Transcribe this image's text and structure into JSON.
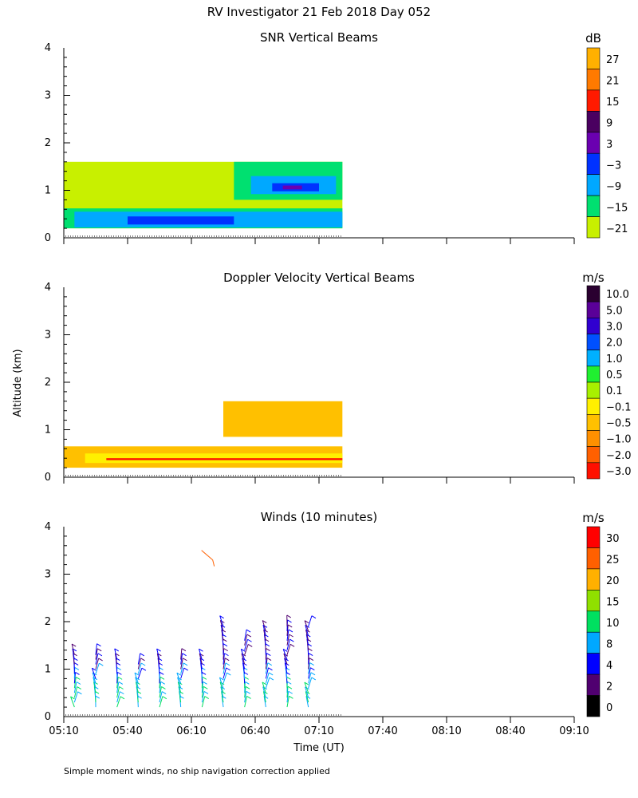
{
  "page_title": "RV Investigator  21 Feb 2018 Day 052",
  "footnote": "Simple moment winds, no ship navigation correction applied",
  "y_axis_label": "Altitude (km)",
  "x_axis_label": "Time (UT)",
  "time_ticks": [
    "05:10",
    "05:40",
    "06:10",
    "06:40",
    "07:10",
    "07:40",
    "08:10",
    "08:40",
    "09:10"
  ],
  "altitude_ticks": [
    "0",
    "1",
    "2",
    "3",
    "4"
  ],
  "chart_data": [
    {
      "type": "heatmap",
      "title": "SNR Vertical Beams",
      "ylabel": "Altitude (km)",
      "ylim": [
        0,
        4
      ],
      "x_range": [
        "05:10",
        "09:10"
      ],
      "data_extent": {
        "time": [
          "05:10",
          "07:21"
        ],
        "altitude_km": [
          0.2,
          1.6
        ]
      },
      "colorbar": {
        "unit": "dB",
        "labels": [
          "27",
          "21",
          "15",
          "9",
          "3",
          "−3",
          "−9",
          "−15",
          "−21"
        ],
        "colors": [
          "#ffb000",
          "#ff7a00",
          "#ff1a00",
          "#4a0060",
          "#6a00b0",
          "#0032ff",
          "#00a8ff",
          "#00e070",
          "#c8f000"
        ]
      },
      "layers": [
        {
          "level_db": -21,
          "color": "#c8f000",
          "bands": [
            {
              "t0": "05:10",
              "t1": "07:21",
              "z0": 0.2,
              "z1": 1.6
            }
          ]
        },
        {
          "level_db": -15,
          "color": "#00e070",
          "bands": [
            {
              "t0": "05:10",
              "t1": "07:21",
              "z0": 0.2,
              "z1": 0.62
            },
            {
              "t0": "06:30",
              "t1": "07:21",
              "z0": 0.8,
              "z1": 1.6
            }
          ]
        },
        {
          "level_db": -9,
          "color": "#00a8ff",
          "bands": [
            {
              "t0": "05:15",
              "t1": "07:21",
              "z0": 0.22,
              "z1": 0.55
            },
            {
              "t0": "06:38",
              "t1": "07:18",
              "z0": 0.92,
              "z1": 1.3
            }
          ]
        },
        {
          "level_db": -3,
          "color": "#0032ff",
          "bands": [
            {
              "t0": "05:40",
              "t1": "06:30",
              "z0": 0.28,
              "z1": 0.45
            },
            {
              "t0": "06:48",
              "t1": "07:10",
              "z0": 0.98,
              "z1": 1.15
            }
          ]
        },
        {
          "level_db": 3,
          "color": "#6a00b0",
          "bands": [
            {
              "t0": "06:53",
              "t1": "07:02",
              "z0": 1.02,
              "z1": 1.1
            }
          ]
        }
      ]
    },
    {
      "type": "heatmap",
      "title": "Doppler Velocity Vertical Beams",
      "ylabel": "Altitude (km)",
      "ylim": [
        0,
        4
      ],
      "x_range": [
        "05:10",
        "09:10"
      ],
      "data_extent": {
        "time": [
          "05:10",
          "07:21"
        ],
        "altitude_km": [
          0.2,
          1.6
        ]
      },
      "colorbar": {
        "unit": "m/s",
        "labels": [
          "10.0",
          "5.0",
          "3.0",
          "2.0",
          "1.0",
          "0.5",
          "0.1",
          "−0.1",
          "−0.5",
          "−1.0",
          "−2.0",
          "−3.0"
        ],
        "colors": [
          "#2a0030",
          "#5a0098",
          "#3000d0",
          "#0050ff",
          "#00b0ff",
          "#20f030",
          "#a8f000",
          "#fff000",
          "#ffc000",
          "#ff9000",
          "#ff6000",
          "#ff1000"
        ]
      },
      "layers": [
        {
          "level_ms": -0.5,
          "color": "#ffc000",
          "bands": [
            {
              "t0": "05:10",
              "t1": "07:21",
              "z0": 0.2,
              "z1": 0.65
            },
            {
              "t0": "06:25",
              "t1": "07:21",
              "z0": 0.85,
              "z1": 1.6
            }
          ]
        },
        {
          "level_ms": -0.1,
          "color": "#fff000",
          "bands": [
            {
              "t0": "05:20",
              "t1": "07:21",
              "z0": 0.3,
              "z1": 0.5
            }
          ]
        },
        {
          "level_ms": -3.0,
          "color": "#ff1000",
          "bands": [
            {
              "t0": "05:30",
              "t1": "07:21",
              "z0": 0.36,
              "z1": 0.4
            }
          ]
        }
      ]
    },
    {
      "type": "scatter",
      "title": "Winds (10 minutes)",
      "ylabel": "Altitude (km)",
      "ylim": [
        0,
        4
      ],
      "x_range": [
        "05:10",
        "09:10"
      ],
      "marker": "wind-barb",
      "colorbar": {
        "unit": "m/s",
        "labels": [
          "30",
          "25",
          "20",
          "15",
          "10",
          "8",
          "4",
          "2",
          "0"
        ],
        "colors": [
          "#ff0000",
          "#ff6000",
          "#ffb000",
          "#90e000",
          "#00e060",
          "#00a8ff",
          "#0000ff",
          "#500070",
          "#000000"
        ]
      },
      "profile_times": [
        "05:15",
        "05:25",
        "05:35",
        "05:45",
        "05:55",
        "06:05",
        "06:15",
        "06:25",
        "06:35",
        "06:45",
        "06:55",
        "07:05"
      ],
      "profile_top_km": [
        1.3,
        1.3,
        1.2,
        1.1,
        1.2,
        1.2,
        1.2,
        1.9,
        1.6,
        1.8,
        1.9,
        1.9
      ],
      "isolated_points": [
        {
          "time": "06:20",
          "altitude_km": 3.3,
          "speed_class": "25"
        }
      ]
    }
  ]
}
